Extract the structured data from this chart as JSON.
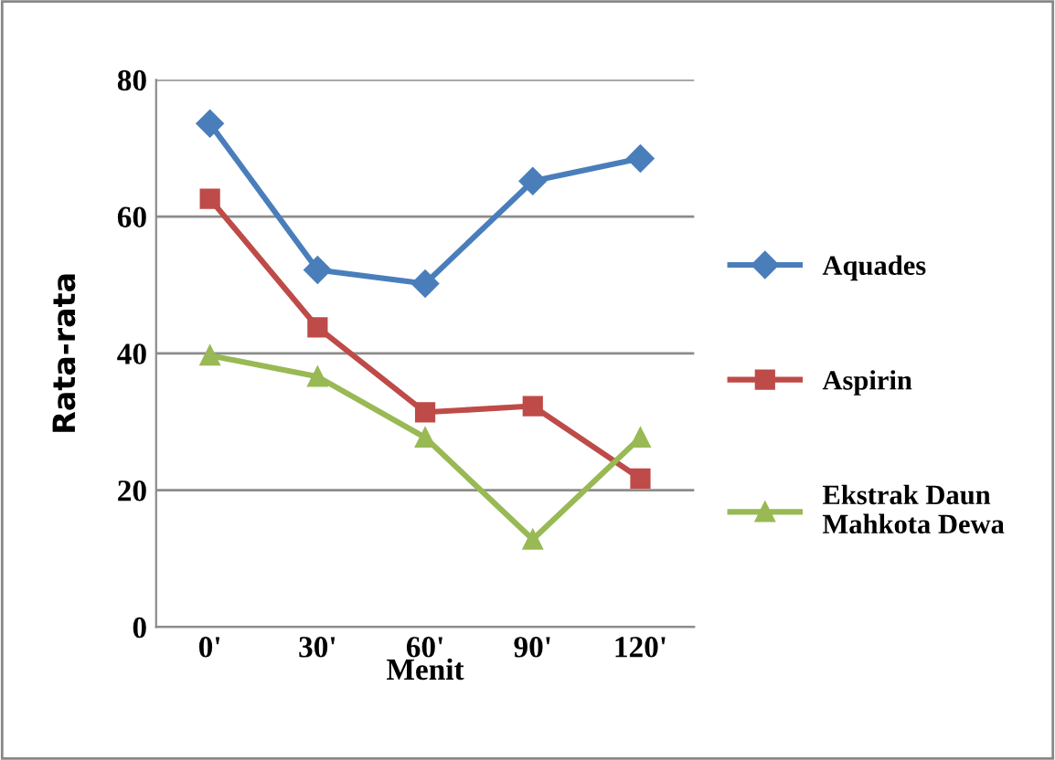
{
  "chart_data": {
    "type": "line",
    "xlabel": "Menit",
    "ylabel": "Rata-rata",
    "categories": [
      "0'",
      "30'",
      "60'",
      "90'",
      "120'"
    ],
    "series": [
      {
        "name": "Aquades",
        "color": "#4a7ebb",
        "values": [
          73.6,
          52.2,
          50.2,
          65.2,
          68.5
        ],
        "marker": "diamond"
      },
      {
        "name": "Aspirin",
        "color": "#be4b48",
        "values": [
          62.6,
          43.8,
          31.4,
          32.3,
          21.7
        ],
        "marker": "square"
      },
      {
        "name": "Ekstrak Daun\nMahkota Dewa",
        "color": "#98b954",
        "values": [
          39.7,
          36.6,
          27.7,
          12.8,
          27.7
        ],
        "marker": "triangle"
      }
    ],
    "ylim": [
      0,
      80
    ],
    "yticks": [
      0,
      20,
      40,
      60,
      80
    ],
    "grid": "y",
    "legend": "right",
    "line_style": "solid"
  }
}
